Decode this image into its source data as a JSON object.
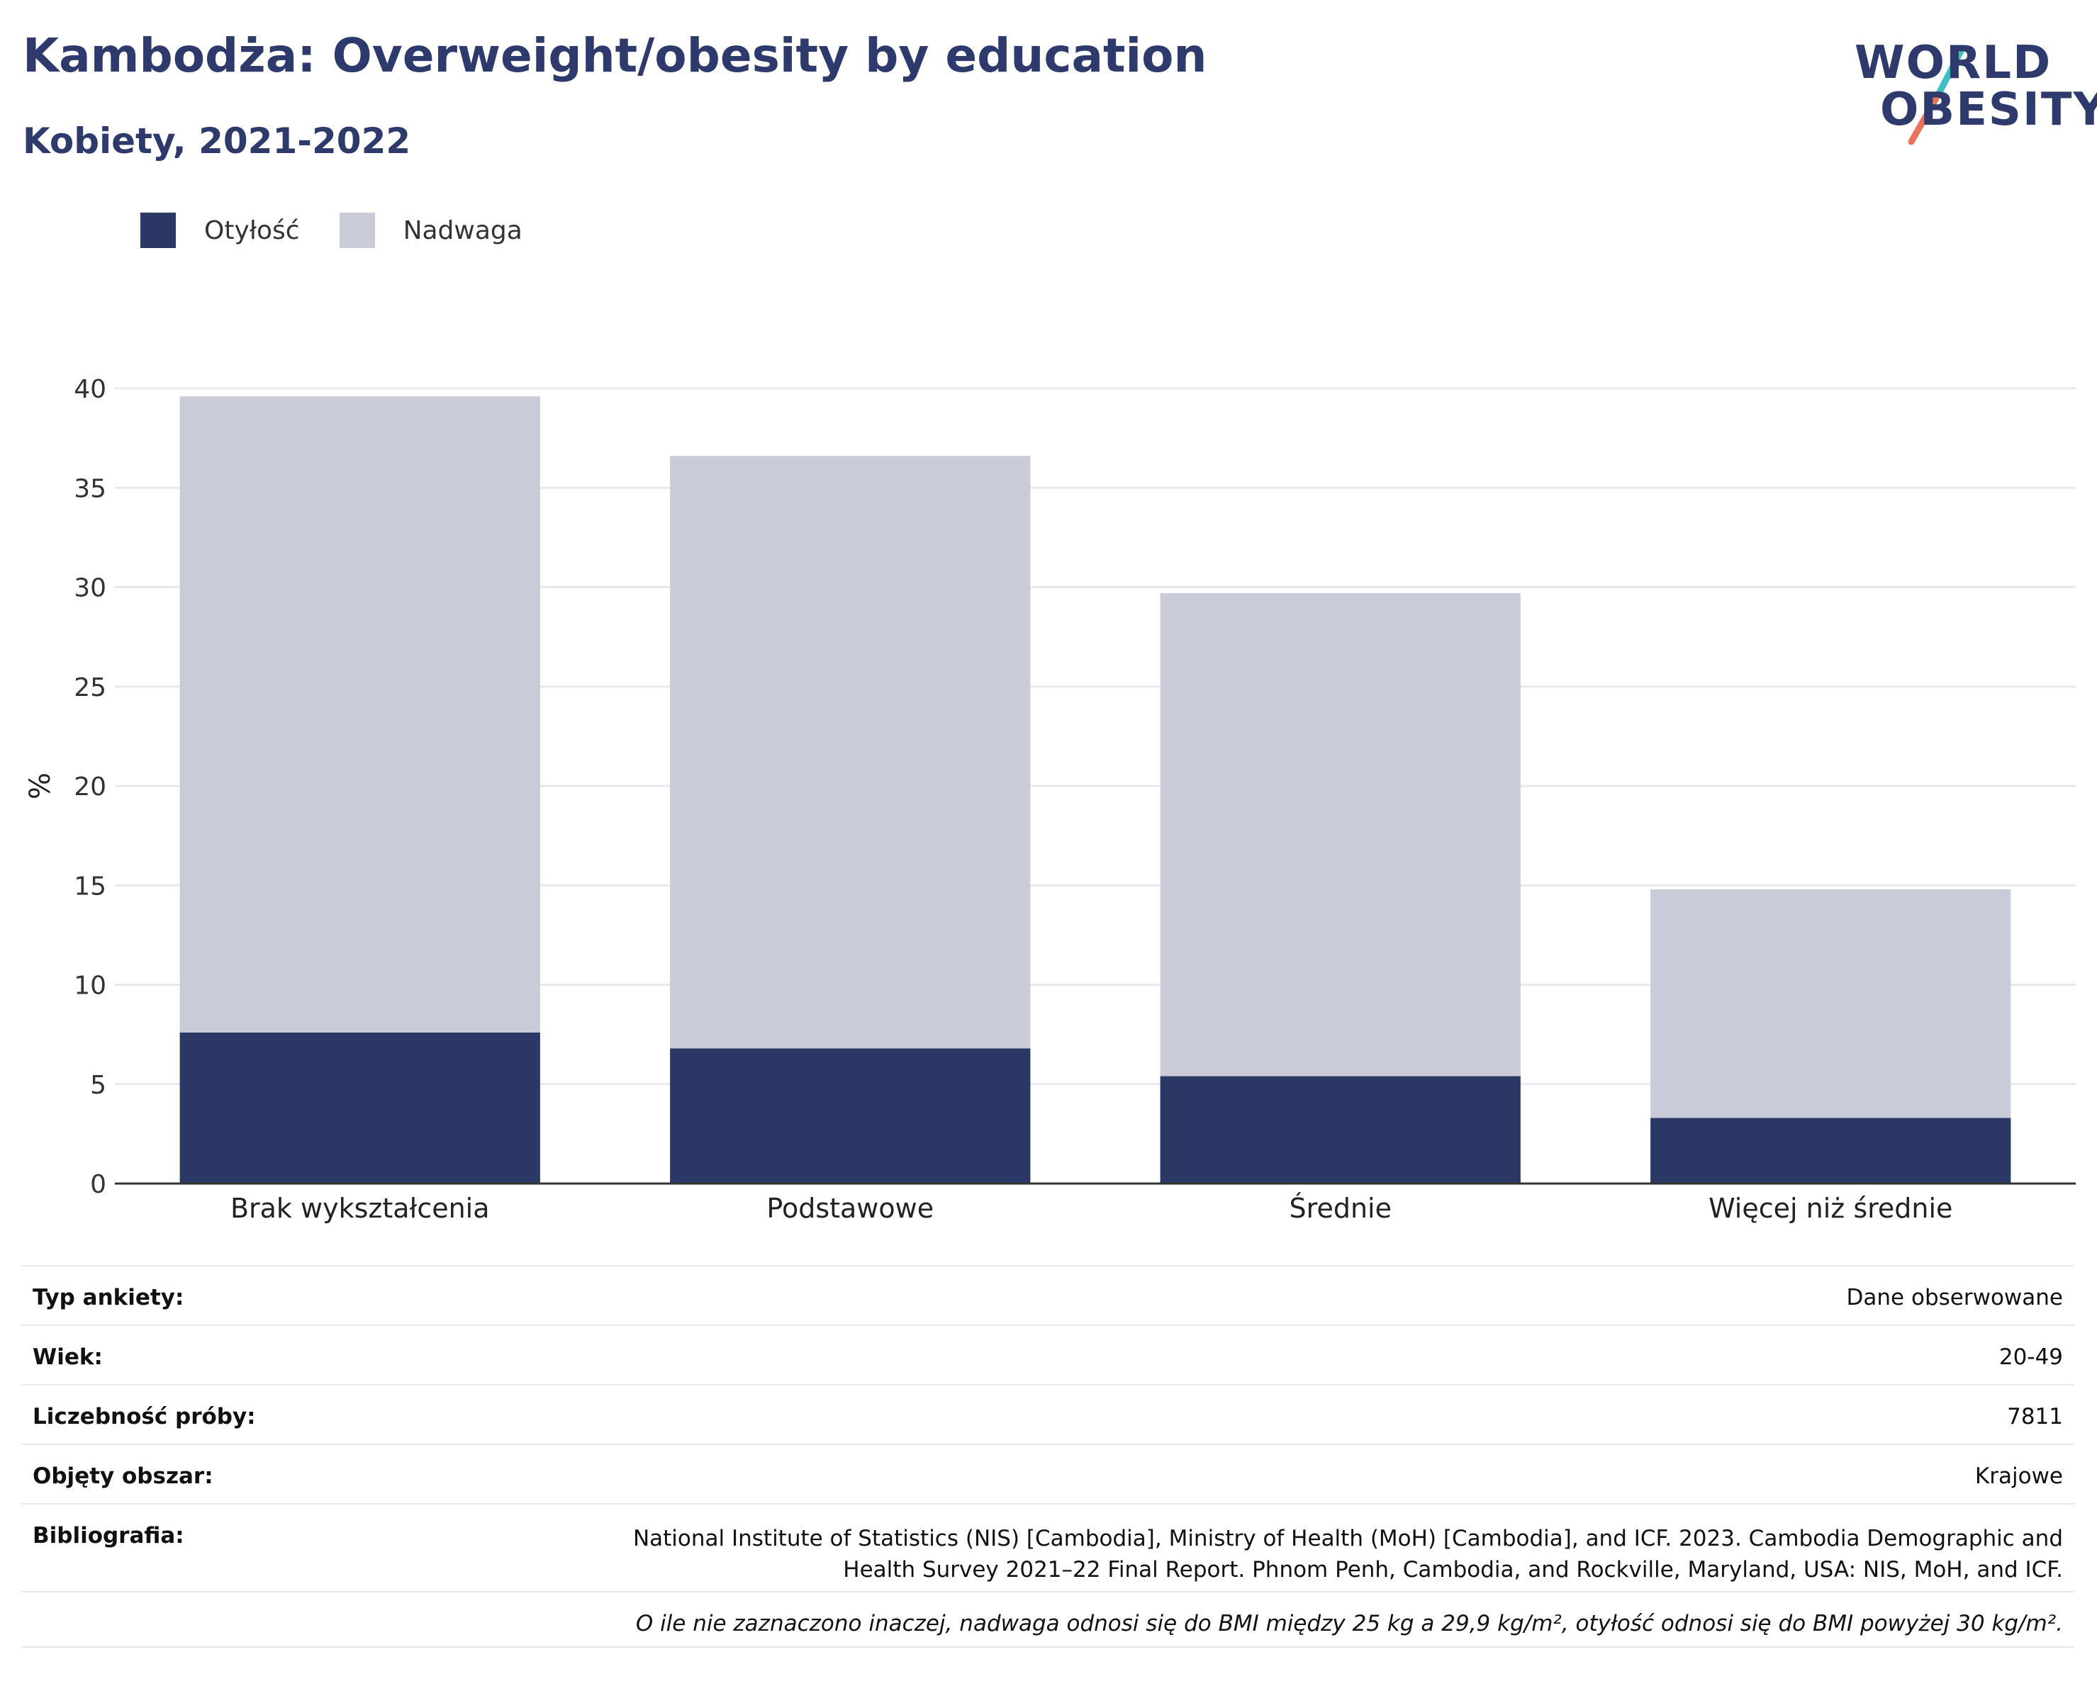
{
  "header": {
    "title": "Kambodża: Overweight/obesity by education",
    "subtitle": "Kobiety, 2021-2022"
  },
  "logo": {
    "line1": "WORLD",
    "line2": "OBESITY",
    "slash_colors": [
      "#3bbfc4",
      "#e8735a"
    ]
  },
  "colors": {
    "obesity": "#2b3765",
    "overweight": "#c9ccd8",
    "text": "#2e3a6b"
  },
  "chart_data": {
    "type": "bar",
    "stacked": true,
    "categories": [
      "Brak wykształcenia",
      "Podstawowe",
      "Średnie",
      "Więcej niż średnie"
    ],
    "series": [
      {
        "name": "Otyłość",
        "values": [
          7.6,
          6.8,
          5.4,
          3.3
        ]
      },
      {
        "name": "Nadwaga",
        "values": [
          32.0,
          29.8,
          24.3,
          11.5
        ]
      }
    ],
    "totals": [
      39.6,
      36.6,
      29.7,
      14.8
    ],
    "ylabel": "%",
    "xlabel": "",
    "ylim": [
      0,
      40
    ],
    "yticks": [
      0,
      5,
      10,
      15,
      20,
      25,
      30,
      35,
      40
    ],
    "legend": "top-left",
    "grid": true
  },
  "meta": {
    "rows": [
      {
        "key": "Typ ankiety:",
        "value": "Dane obserwowane"
      },
      {
        "key": "Wiek:",
        "value": "20-49"
      },
      {
        "key": "Liczebność próby:",
        "value": "7811"
      },
      {
        "key": "Objęty obszar:",
        "value": "Krajowe"
      }
    ],
    "bibliography_key": "Bibliografia:",
    "bibliography_line1": "National Institute of Statistics (NIS) [Cambodia], Ministry of Health (MoH) [Cambodia], and ICF. 2023. Cambodia Demographic and",
    "bibliography_line2": "Health Survey 2021–22 Final Report. Phnom Penh, Cambodia, and Rockville, Maryland, USA: NIS, MoH, and ICF.",
    "note": "O ile nie zaznaczono inaczej, nadwaga odnosi się do BMI między 25 kg a 29,9 kg/m², otyłość odnosi się do BMI powyżej 30 kg/m²."
  }
}
